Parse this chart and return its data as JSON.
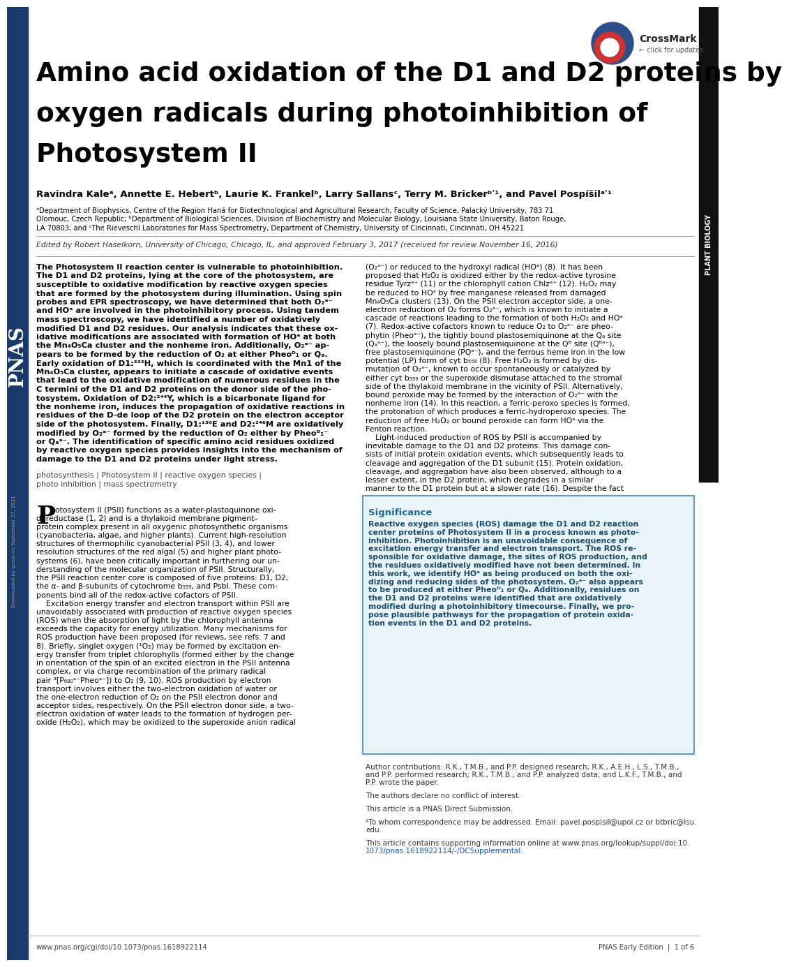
{
  "title_line1": "Amino acid oxidation of the D1 and D2 proteins by",
  "title_line2": "oxygen radicals during photoinhibition of",
  "title_line3": "Photosystem II",
  "authors": "Ravindra Kaleᵃ, Annette E. Hebertᵇ, Laurie K. Frankelᵇ, Larry Sallansᶜ, Terry M. Brickerᵇʹ¹, and Pavel Pospíšilᵃʹ¹",
  "affil1": "ᵃDepartment of Biophysics, Centre of the Region Haná for Biotechnological and Agricultural Research, Faculty of Science, Palacký University, 783 71",
  "affil2": "Olomouc, Czech Republic; ᵇDepartment of Biological Sciences, Division of Biochemistry and Molecular Biology, Louisiana State University, Baton Rouge,",
  "affil3": "LA 70803; and ᶜThe Rieveschl Laboratories for Mass Spectrometry, Department of Chemistry, University of Cincinnati, Cincinnati, OH 45221",
  "edited_by": "Edited by Robert Haselkorn, University of Chicago, Chicago, IL, and approved February 3, 2017 (received for review November 16, 2016)",
  "abstract_lines": [
    "The Photosystem II reaction center is vulnerable to photoinhibition.",
    "The D1 and D2 proteins, lying at the core of the photosystem, are",
    "susceptible to oxidative modification by reactive oxygen species",
    "that are formed by the photosystem during illumination. Using spin",
    "probes and EPR spectroscopy, we have determined that both O₂ᵃ⁻",
    "and HOᵃ are involved in the photoinhibitory process. Using tandem",
    "mass spectroscopy, we have identified a number of oxidatively",
    "modified D1 and D2 residues. Our analysis indicates that these ox-",
    "idative modifications are associated with formation of HOᵃ at both",
    "the Mn₄O₅Ca cluster and the nonheme iron. Additionally, O₂ᵃ⁻ ap-",
    "pears to be formed by the reduction of O₂ at either Pheoᴰ₁ or Qₐ.",
    "Early oxidation of D1:³³²H, which is coordinated with the Mn1 of the",
    "Mn₄O₅Ca cluster, appears to initiate a cascade of oxidative events",
    "that lead to the oxidative modification of numerous residues in the",
    "C termini of the D1 and D2 proteins on the donor side of the pho-",
    "tosystem. Oxidation of D2:²⁴⁴Y, which is a bicarbonate ligand for",
    "the nonheme iron, induces the propagation of oxidative reactions in",
    "residues of the D-de loop of the D2 protein on the electron acceptor",
    "side of the photosystem. Finally, D1:¹³⁰E and D2:²⁴⁶M are oxidatively",
    "modified by O₂ᵃ⁻ formed by the reduction of O₂ either by Pheoᴰ₁⁻",
    "or Qₐᵃ⁻. The identification of specific amino acid residues oxidized",
    "by reactive oxygen species provides insights into the mechanism of",
    "damage to the D1 and D2 proteins under light stress."
  ],
  "keywords_lines": [
    "photosynthesis | Photosystem II | reactive oxygen species |",
    "photo inhibition | mass spectrometry"
  ],
  "intro_lines": [
    "hotosystem II (PSII) functions as a water-plastoquinone oxi-",
    "doreductase (1, 2) and is a thylakoid membrane pigment–",
    "protein complex present in all oxygenic photosynthetic organisms",
    "(cyanobacteria, algae, and higher plants). Current high-resolution",
    "structures of thermophilic cyanobacterial PSII (3, 4), and lower",
    "resolution structures of the red algal (5) and higher plant photo-",
    "systems (6), have been critically important in furthering our un-",
    "derstanding of the molecular organization of PSII. Structurally,",
    "the PSII reaction center core is composed of five proteins: D1, D2,",
    "the α- and β-subunits of cytochrome b₅₅₉, and PsbI. These com-",
    "ponents bind all of the redox-active cofactors of PSII.",
    "    Excitation energy transfer and electron transport within PSII are",
    "unavoidably associated with production of reactive oxygen species",
    "(ROS) when the absorption of light by the chlorophyll antenna",
    "exceeds the capacity for energy utilization. Many mechanisms for",
    "ROS production have been proposed (for reviews, see refs. 7 and",
    "8). Briefly, singlet oxygen (¹O₂) may be formed by excitation en-",
    "ergy transfer from triplet chlorophylls (formed either by the change",
    "in orientation of the spin of an excited electron in the PSII antenna",
    "complex, or via charge recombination of the primary radical",
    "pair ³[P₆₈₀ᵃ⁻Pheoᵃ⁻]) to O₂ (9, 10). ROS production by electron",
    "transport involves either the two-electron oxidation of water or",
    "the one-electron reduction of O₂ on the PSII electron donor and",
    "acceptor sides, respectively. On the PSII electron donor side, a two-",
    "electron oxidation of water leads to the formation of hydrogen per-",
    "oxide (H₂O₂), which may be oxidized to the superoxide anion radical"
  ],
  "right_col_lines": [
    "(O₂ᵃ⁻) or reduced to the hydroxyl radical (HOᵃ) (8). It has been",
    "proposed that H₂O₂ is oxidized either by the redox-active tyrosine",
    "residue Tyrᴢᵃ⁺ (11) or the chlorophyll cation Chlᴢᵃ⁺ (12). H₂O₂ may",
    "be reduced to HOᵃ by free manganese released from damaged",
    "Mn₄O₅Ca clusters (13). On the PSII electron acceptor side, a one-",
    "electron reduction of O₂ forms O₂ᵃ⁻, which is known to initiate a",
    "cascade of reactions leading to the formation of both H₂O₂ and HOᵃ",
    "(7). Redox-active cofactors known to reduce O₂ to O₂ᵃ⁻ are pheo-",
    "phytin (Pheoᵃ⁻), the tightly bound plastosemiquinone at the Qₐ site",
    "(Qₐᵃ⁻), the loosely bound plastosemiquinone at the Qᴮ site (Qᴮᵃ⁻),",
    "free plastosemiquinone (PQᵃ⁻), and the ferrous heme iron in the low",
    "potential (LP) form of cyt b₅₅₉ (8). Free H₂O₂ is formed by dis-",
    "mutation of O₂ᵃ⁻, known to occur spontaneously or catalyzed by",
    "either cyt b₅₅₉ or the superoxide dismutase attached to the stromal",
    "side of the thylakoid membrane in the vicinity of PSII. Alternatively,",
    "bound peroxide may be formed by the interaction of O₂ᵃ⁻ with the",
    "nonheme iron (14). In this reaction, a ferric-peroxo species is formed,",
    "the protonation of which produces a ferric-hydroperoxo species. The",
    "reduction of free H₂O₂ or bound peroxide can form HOᵃ via the",
    "Fenton reaction.",
    "    Light-induced production of ROS by PSII is accompanied by",
    "inevitable damage to the D1 and D2 proteins. This damage con-",
    "sists of initial protein oxidation events, which subsequently leads to",
    "cleavage and aggregation of the D1 subunit (15). Protein oxidation,",
    "cleavage, and aggregation have also been observed, although to a",
    "lesser extent, in the D2 protein, which degrades in a similar",
    "manner to the D1 protein but at a slower rate (16). Despite the fact"
  ],
  "significance_title": "Significance",
  "significance_lines": [
    "Reactive oxygen species (ROS) damage the D1 and D2 reaction",
    "center proteins of Photosystem II in a process known as photo-",
    "inhibition. Photoinhibition is an unavoidable consequence of",
    "excitation energy transfer and electron transport. The ROS re-",
    "sponsible for oxidative damage, the sites of ROS production, and",
    "the residues oxidatively modified have not been determined. In",
    "this work, we identify HOᵃ as being produced on both the oxi-",
    "dizing and reducing sides of the photosystem. O₂ᵃ⁻ also appears",
    "to be produced at either Pheoᴰ₁ or Qₐ. Additionally, residues on",
    "the D1 and D2 proteins were identified that are oxidatively",
    "modified during a photoinhibitory timecourse. Finally, we pro-",
    "pose plausible pathways for the propagation of protein oxida-",
    "tion events in the D1 and D2 proteins."
  ],
  "author_contrib_lines": [
    "Author contributions: R.K., T.M.B., and P.P. designed research; R.K., A.E.H., L.S., T.M.B.,",
    "and P.P. performed research; R.K., T.M.B., and P.P. analyzed data; and L.K.F., T.M.B., and",
    "P.P. wrote the paper."
  ],
  "conflict": "The authors declare no conflict of interest.",
  "direct_submission": "This article is a PNAS Direct Submission.",
  "correspondence_lines": [
    "¹To whom correspondence may be addressed. Email: pavel.pospisil@upol.cz or btbric@lsu.",
    "edu."
  ],
  "supporting_lines": [
    "This article contains supporting information online at www.pnas.org/lookup/suppl/doi:10.",
    "1073/pnas.1618922114/-/DCSupplemental."
  ],
  "footer_left": "www.pnas.org/cgi/doi/10.1073/pnas.1618922114",
  "footer_right": "PNAS Early Edition  |  1 of 6",
  "sidebar_text": "PNAS",
  "plant_biology_text": "PLANT BIOLOGY",
  "bg_color": "#ffffff",
  "sidebar_color": "#1a3a6b",
  "plant_biol_color": "#111111",
  "significance_bg": "#e8f4f8",
  "significance_border": "#5b9bc7",
  "significance_title_color": "#1a6b9a",
  "significance_text_color": "#1a4a6b",
  "watermark": "Downloaded by guest on September 27, 2021"
}
